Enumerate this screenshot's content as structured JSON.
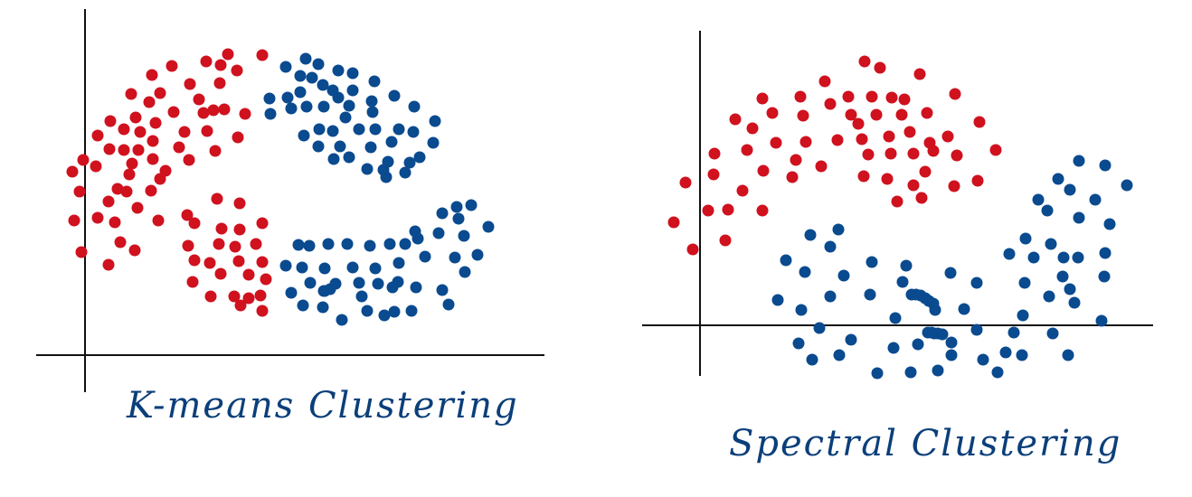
{
  "colors": {
    "red": "#d0111e",
    "blue": "#0a4a8f",
    "axis": "#111111",
    "ink": "#0b3f7a"
  },
  "panels": [
    {
      "caption": "K-means Clustering",
      "red": [
        [
          190,
          73
        ],
        [
          228,
          68
        ],
        [
          252,
          60
        ],
        [
          290,
          61
        ],
        [
          244,
          72
        ],
        [
          262,
          78
        ],
        [
          168,
          83
        ],
        [
          210,
          93
        ],
        [
          243,
          92
        ],
        [
          145,
          104
        ],
        [
          177,
          103
        ],
        [
          165,
          113
        ],
        [
          192,
          124
        ],
        [
          225,
          125
        ],
        [
          220,
          110
        ],
        [
          236,
          122
        ],
        [
          248,
          121
        ],
        [
          271,
          126
        ],
        [
          122,
          134
        ],
        [
          150,
          130
        ],
        [
          172,
          136
        ],
        [
          108,
          150
        ],
        [
          137,
          143
        ],
        [
          155,
          146
        ],
        [
          204,
          146
        ],
        [
          229,
          145
        ],
        [
          263,
          152
        ],
        [
          121,
          165
        ],
        [
          137,
          166
        ],
        [
          153,
          166
        ],
        [
          169,
          156
        ],
        [
          198,
          163
        ],
        [
          92,
          177
        ],
        [
          106,
          184
        ],
        [
          146,
          181
        ],
        [
          169,
          176
        ],
        [
          183,
          189
        ],
        [
          209,
          177
        ],
        [
          238,
          167
        ],
        [
          80,
          190
        ],
        [
          143,
          193
        ],
        [
          130,
          209
        ],
        [
          140,
          212
        ],
        [
          177,
          198
        ],
        [
          88,
          212
        ],
        [
          120,
          223
        ],
        [
          167,
          211
        ],
        [
          152,
          230
        ],
        [
          82,
          244
        ],
        [
          108,
          241
        ],
        [
          127,
          246
        ],
        [
          175,
          244
        ],
        [
          90,
          279
        ],
        [
          133,
          268
        ],
        [
          149,
          277
        ],
        [
          120,
          293
        ],
        [
          207,
          238
        ],
        [
          240,
          220
        ],
        [
          265,
          225
        ],
        [
          215,
          247
        ],
        [
          245,
          253
        ],
        [
          265,
          254
        ],
        [
          290,
          247
        ],
        [
          208,
          272
        ],
        [
          242,
          270
        ],
        [
          260,
          273
        ],
        [
          283,
          270
        ],
        [
          215,
          288
        ],
        [
          232,
          291
        ],
        [
          264,
          289
        ],
        [
          290,
          290
        ],
        [
          213,
          312
        ],
        [
          244,
          303
        ],
        [
          275,
          304
        ],
        [
          294,
          309
        ],
        [
          233,
          328
        ],
        [
          259,
          328
        ],
        [
          275,
          330
        ],
        [
          288,
          327
        ],
        [
          266,
          338
        ],
        [
          290,
          344
        ]
      ],
      "blue": [
        [
          316,
          74
        ],
        [
          338,
          65
        ],
        [
          352,
          71
        ],
        [
          332,
          84
        ],
        [
          345,
          86
        ],
        [
          374,
          78
        ],
        [
          357,
          94
        ],
        [
          390,
          81
        ],
        [
          414,
          90
        ],
        [
          298,
          109
        ],
        [
          318,
          108
        ],
        [
          332,
          102
        ],
        [
          368,
          100
        ],
        [
          374,
          108
        ],
        [
          390,
          100
        ],
        [
          411,
          112
        ],
        [
          299,
          126
        ],
        [
          322,
          120
        ],
        [
          339,
          118
        ],
        [
          358,
          118
        ],
        [
          382,
          130
        ],
        [
          386,
          117
        ],
        [
          436,
          106
        ],
        [
          412,
          124
        ],
        [
          458,
          118
        ],
        [
          481,
          134
        ],
        [
          336,
          150
        ],
        [
          353,
          143
        ],
        [
          368,
          145
        ],
        [
          397,
          143
        ],
        [
          415,
          143
        ],
        [
          441,
          143
        ],
        [
          457,
          146
        ],
        [
          352,
          162
        ],
        [
          376,
          162
        ],
        [
          410,
          163
        ],
        [
          433,
          157
        ],
        [
          479,
          158
        ],
        [
          386,
          174
        ],
        [
          369,
          176
        ],
        [
          406,
          187
        ],
        [
          424,
          188
        ],
        [
          429,
          179
        ],
        [
          453,
          180
        ],
        [
          448,
          191
        ],
        [
          464,
          174
        ],
        [
          427,
          196
        ],
        [
          489,
          236
        ],
        [
          505,
          229
        ],
        [
          521,
          227
        ],
        [
          507,
          242
        ],
        [
          540,
          251
        ],
        [
          459,
          256
        ],
        [
          485,
          258
        ],
        [
          513,
          261
        ],
        [
          330,
          271
        ],
        [
          342,
          272
        ],
        [
          363,
          270
        ],
        [
          384,
          270
        ],
        [
          409,
          272
        ],
        [
          431,
          270
        ],
        [
          448,
          270
        ],
        [
          462,
          264
        ],
        [
          316,
          294
        ],
        [
          334,
          296
        ],
        [
          359,
          297
        ],
        [
          390,
          296
        ],
        [
          415,
          297
        ],
        [
          441,
          291
        ],
        [
          470,
          284
        ],
        [
          503,
          285
        ],
        [
          528,
          282
        ],
        [
          343,
          313
        ],
        [
          371,
          314
        ],
        [
          397,
          313
        ],
        [
          418,
          314
        ],
        [
          440,
          312
        ],
        [
          489,
          321
        ],
        [
          514,
          301
        ],
        [
          322,
          324
        ],
        [
          358,
          322
        ],
        [
          359,
          322
        ],
        [
          365,
          320
        ],
        [
          400,
          328
        ],
        [
          434,
          318
        ],
        [
          460,
          318
        ],
        [
          335,
          338
        ],
        [
          357,
          340
        ],
        [
          378,
          354
        ],
        [
          406,
          344
        ],
        [
          425,
          349
        ],
        [
          436,
          345
        ],
        [
          455,
          344
        ],
        [
          496,
          337
        ]
      ]
    },
    {
      "caption": "Spectral Clustering",
      "red": [
        [
          956,
          68
        ],
        [
          973,
          75
        ],
        [
          912,
          90
        ],
        [
          1017,
          82
        ],
        [
          938,
          107
        ],
        [
          964,
          107
        ],
        [
          986,
          108
        ],
        [
          1000,
          110
        ],
        [
          843,
          109
        ],
        [
          885,
          107
        ],
        [
          918,
          115
        ],
        [
          941,
          127
        ],
        [
          969,
          127
        ],
        [
          997,
          127
        ],
        [
          1025,
          125
        ],
        [
          1056,
          104
        ],
        [
          813,
          132
        ],
        [
          832,
          142
        ],
        [
          854,
          125
        ],
        [
          888,
          128
        ],
        [
          949,
          137
        ],
        [
          1083,
          135
        ],
        [
          790,
          170
        ],
        [
          826,
          166
        ],
        [
          858,
          158
        ],
        [
          891,
          157
        ],
        [
          926,
          155
        ],
        [
          953,
          154
        ],
        [
          983,
          151
        ],
        [
          1006,
          146
        ],
        [
          1028,
          158
        ],
        [
          1048,
          151
        ],
        [
          1101,
          166
        ],
        [
          880,
          177
        ],
        [
          908,
          184
        ],
        [
          960,
          171
        ],
        [
          985,
          170
        ],
        [
          1010,
          170
        ],
        [
          1032,
          167
        ],
        [
          1058,
          172
        ],
        [
          758,
          202
        ],
        [
          789,
          193
        ],
        [
          844,
          189
        ],
        [
          876,
          196
        ],
        [
          955,
          195
        ],
        [
          981,
          198
        ],
        [
          1010,
          205
        ],
        [
          1023,
          190
        ],
        [
          1055,
          206
        ],
        [
          1081,
          200
        ],
        [
          821,
          211
        ],
        [
          992,
          223
        ],
        [
          1019,
          219
        ],
        [
          783,
          233
        ],
        [
          805,
          232
        ],
        [
          843,
          233
        ],
        [
          745,
          246
        ],
        [
          802,
          266
        ],
        [
          766,
          276
        ]
      ],
      "blue": [
        [
          1193,
          178
        ],
        [
          1222,
          183
        ],
        [
          1170,
          198
        ],
        [
          1246,
          205
        ],
        [
          1183,
          210
        ],
        [
          1148,
          221
        ],
        [
          1211,
          221
        ],
        [
          1158,
          233
        ],
        [
          1193,
          241
        ],
        [
          1227,
          248
        ],
        [
          896,
          260
        ],
        [
          927,
          254
        ],
        [
          1134,
          264
        ],
        [
          1162,
          270
        ],
        [
          918,
          273
        ],
        [
          1116,
          281
        ],
        [
          1143,
          285
        ],
        [
          1176,
          285
        ],
        [
          1192,
          285
        ],
        [
          1222,
          280
        ],
        [
          869,
          288
        ],
        [
          964,
          290
        ],
        [
          1002,
          294
        ],
        [
          890,
          301
        ],
        [
          933,
          305
        ],
        [
          1051,
          302
        ],
        [
          1175,
          306
        ],
        [
          1221,
          306
        ],
        [
          998,
          312
        ],
        [
          1080,
          313
        ],
        [
          1133,
          313
        ],
        [
          1008,
          326
        ],
        [
          1013,
          326
        ],
        [
          1018,
          327
        ],
        [
          1023,
          330
        ],
        [
          1027,
          333
        ],
        [
          1032,
          336
        ],
        [
          1160,
          328
        ],
        [
          1183,
          320
        ],
        [
          860,
          332
        ],
        [
          918,
          328
        ],
        [
          962,
          326
        ],
        [
          886,
          343
        ],
        [
          1034,
          343
        ],
        [
          1066,
          342
        ],
        [
          1131,
          349
        ],
        [
          1188,
          335
        ],
        [
          990,
          352
        ],
        [
          1218,
          355
        ],
        [
          906,
          363
        ],
        [
          1026,
          368
        ],
        [
          1030,
          368
        ],
        [
          1033,
          369
        ],
        [
          1037,
          369
        ],
        [
          1042,
          370
        ],
        [
          1080,
          365
        ],
        [
          1121,
          368
        ],
        [
          1164,
          369
        ],
        [
          941,
          376
        ],
        [
          883,
          380
        ],
        [
          1052,
          379
        ],
        [
          1015,
          381
        ],
        [
          898,
          398
        ],
        [
          928,
          393
        ],
        [
          988,
          385
        ],
        [
          1052,
          393
        ],
        [
          1087,
          398
        ],
        [
          1112,
          390
        ],
        [
          1130,
          393
        ],
        [
          1181,
          393
        ],
        [
          970,
          413
        ],
        [
          1007,
          412
        ],
        [
          1037,
          410
        ],
        [
          1103,
          412
        ]
      ]
    }
  ]
}
